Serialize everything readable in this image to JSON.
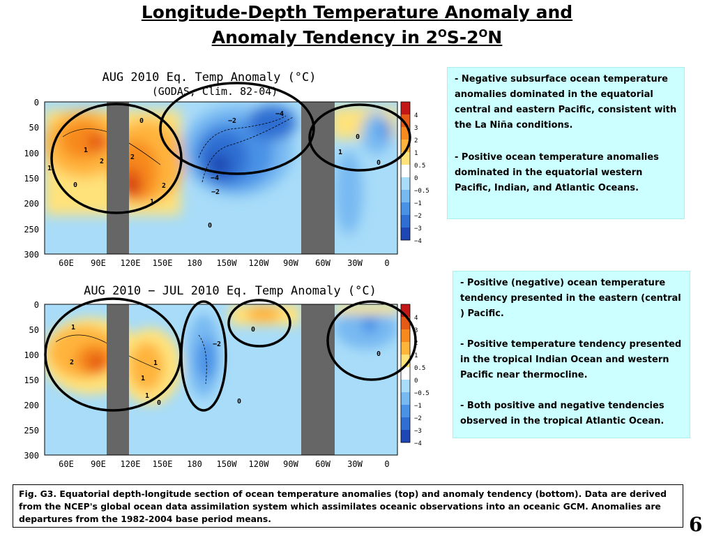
{
  "slide": {
    "title_line1": "Longitude-Depth Temperature Anomaly and",
    "title_line2_pre": "Anomaly Tendency in 2",
    "title_sup1": "O",
    "title_mid": "S-2",
    "title_sup2": "O",
    "title_end": "N",
    "slide_number": "6"
  },
  "notes_top": [
    "- Negative subsurface ocean temperature anomalies dominated in the equatorial central and eastern Pacific, consistent with the La Niña conditions.",
    "- Positive ocean temperature anomalies dominated in the equatorial western Pacific, Indian, and Atlantic Oceans."
  ],
  "notes_bottom": [
    "- Positive (negative) ocean temperature tendency presented in the eastern (central ) Pacific.",
    "- Positive temperature tendency presented in the tropical Indian Ocean and western Pacific near thermocline.",
    "- Both positive and negative tendencies observed  in the tropical Atlantic Ocean."
  ],
  "caption": "Fig. G3. Equatorial depth-longitude section of ocean temperature anomalies (top) and anomaly tendency (bottom). Data are derived from the NCEP's global ocean data assimilation system which assimilates oceanic observations into an oceanic GCM. Anomalies are departures from the 1982-2004 base period means.",
  "colors": {
    "neg4": "#1e46b4",
    "neg3": "#2f6ed2",
    "neg2": "#4a92e6",
    "neg1": "#78b9f2",
    "neg05": "#a8dcf8",
    "zero": "#ffffff",
    "pos05": "#ffe27a",
    "pos1": "#ffb43c",
    "pos2": "#f78a1e",
    "pos3": "#e55a16",
    "pos4": "#c21818",
    "land": "#666666",
    "box_bg": "#ccffff"
  },
  "chart_data": [
    {
      "type": "heatmap",
      "title": "AUG 2010 Eq. Temp Anomaly (°C)",
      "subtitle": "(GODAS, Clim. 82-04)",
      "x_ticks": [
        "60E",
        "90E",
        "120E",
        "150E",
        "180",
        "150W",
        "120W",
        "90W",
        "60W",
        "30W",
        "0"
      ],
      "y_ticks": [
        "0",
        "50",
        "100",
        "150",
        "200",
        "250",
        "300"
      ],
      "ylim": [
        300,
        0
      ],
      "colorbar_labels": [
        "4",
        "3",
        "2",
        "1",
        "0.5",
        "0",
        "−0.5",
        "−1",
        "−2",
        "−3",
        "−4"
      ],
      "contour_labels": [
        "1",
        "2",
        "1",
        "2",
        "2",
        "1",
        "0",
        "0",
        "0",
        "1",
        "−2",
        "−4",
        "−4",
        "−2",
        "0",
        "0"
      ],
      "features": [
        {
          "region": "Indian Ocean",
          "lon": 85,
          "depth": 90,
          "value": 3
        },
        {
          "region": "Western Pacific",
          "lon": 125,
          "depth": 150,
          "value": 3
        },
        {
          "region": "Central Pacific",
          "lon": 197,
          "depth": 110,
          "value": -3.5
        },
        {
          "region": "Eastern Pacific",
          "lon": 245,
          "depth": 50,
          "value": -4
        },
        {
          "region": "Atlantic",
          "lon": 345,
          "depth": 60,
          "value": -1
        }
      ]
    },
    {
      "type": "heatmap",
      "title": "AUG 2010 − JUL 2010 Eq. Temp Anomaly (°C)",
      "x_ticks": [
        "60E",
        "90E",
        "120E",
        "150E",
        "180",
        "150W",
        "120W",
        "90W",
        "60W",
        "30W",
        "0"
      ],
      "y_ticks": [
        "0",
        "50",
        "100",
        "150",
        "200",
        "250",
        "300"
      ],
      "ylim": [
        300,
        0
      ],
      "colorbar_labels": [
        "4",
        "3",
        "2",
        "1",
        "0.5",
        "0",
        "−0.5",
        "−1",
        "−2",
        "−3",
        "−4"
      ],
      "contour_labels": [
        "1",
        "2",
        "1",
        "1",
        "1",
        "0",
        "−2",
        "0",
        "0",
        "0"
      ],
      "features": [
        {
          "region": "Indian Ocean",
          "lon": 88,
          "depth": 105,
          "value": 3
        },
        {
          "region": "Western Pacific",
          "lon": 135,
          "depth": 110,
          "value": 2
        },
        {
          "region": "Central Pacific",
          "lon": 178,
          "depth": 90,
          "value": -2
        },
        {
          "region": "Eastern Pacific",
          "lon": 245,
          "depth": 30,
          "value": 1
        },
        {
          "region": "Atlantic",
          "lon": 348,
          "depth": 30,
          "value": -2
        }
      ]
    }
  ]
}
